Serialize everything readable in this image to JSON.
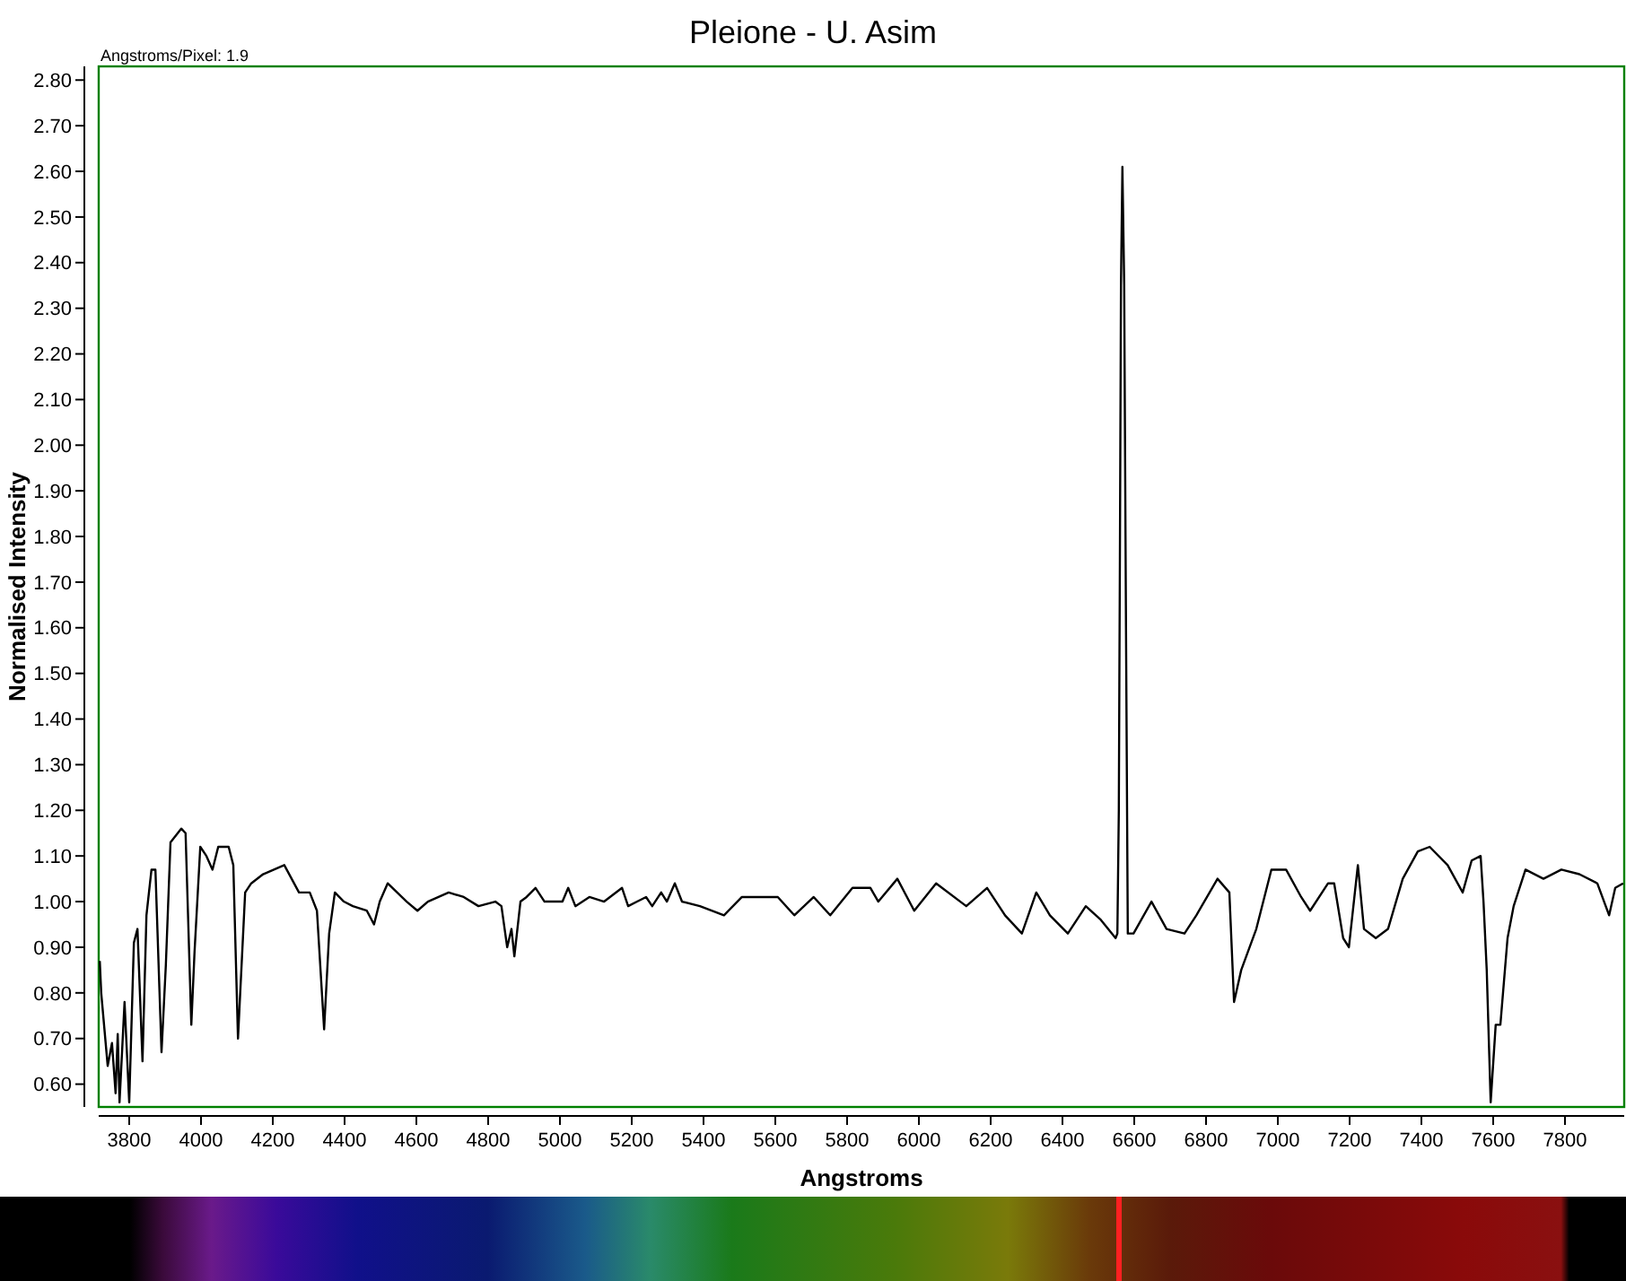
{
  "chart_data": {
    "type": "line",
    "title": "Pleione - U. Asim",
    "xlabel": "Angstroms",
    "ylabel": "Normalised Intensity",
    "annotations": [
      "Angstroms/Pixel: 1.9"
    ],
    "xlim": [
      3715,
      7965
    ],
    "ylim": [
      0.55,
      2.83
    ],
    "xticks": [
      3800,
      4000,
      4200,
      4400,
      4600,
      4800,
      5000,
      5200,
      5400,
      5600,
      5800,
      6000,
      6200,
      6400,
      6600,
      6800,
      7000,
      7200,
      7400,
      7600,
      7800
    ],
    "yticks": [
      {
        "value": 0.6,
        "label": "0.60"
      },
      {
        "value": 0.7,
        "label": "0.70"
      },
      {
        "value": 0.8,
        "label": "0.80"
      },
      {
        "value": 0.9,
        "label": "0.90"
      },
      {
        "value": 1.0,
        "label": "1.00"
      },
      {
        "value": 1.1,
        "label": "1.10"
      },
      {
        "value": 1.2,
        "label": "1.20"
      },
      {
        "value": 1.3,
        "label": "1.30"
      },
      {
        "value": 1.4,
        "label": "1.40"
      },
      {
        "value": 1.5,
        "label": "1.50"
      },
      {
        "value": 1.6,
        "label": "1.60"
      },
      {
        "value": 1.7,
        "label": "1.70"
      },
      {
        "value": 1.8,
        "label": "1.80"
      },
      {
        "value": 1.9,
        "label": "1.90"
      },
      {
        "value": 2.0,
        "label": "2.00"
      },
      {
        "value": 2.1,
        "label": "2.10"
      },
      {
        "value": 2.2,
        "label": "2.20"
      },
      {
        "value": 2.3,
        "label": "2.30"
      },
      {
        "value": 2.4,
        "label": "2.40"
      },
      {
        "value": 2.5,
        "label": "2.50"
      },
      {
        "value": 2.6,
        "label": "2.60"
      },
      {
        "value": 2.7,
        "label": "2.70"
      },
      {
        "value": 2.8,
        "label": "2.80"
      }
    ],
    "grid": false,
    "marker": "none",
    "line_style": "solid",
    "series": [
      {
        "color": "#000000",
        "x": [
          3718,
          3722,
          3740,
          3752,
          3762,
          3768,
          3773,
          3787,
          3800,
          3813,
          3823,
          3837,
          3848,
          3862,
          3873,
          3890,
          3902,
          3915,
          3945,
          3957,
          3973,
          3982,
          3998,
          4015,
          4032,
          4048,
          4077,
          4090,
          4103,
          4123,
          4140,
          4173,
          4232,
          4273,
          4303,
          4323,
          4343,
          4357,
          4373,
          4398,
          4423,
          4462,
          4482,
          4498,
          4520,
          4573,
          4603,
          4632,
          4690,
          4732,
          4773,
          4820,
          4837,
          4853,
          4865,
          4873,
          4890,
          4907,
          4932,
          4957,
          5007,
          5023,
          5043,
          5082,
          5123,
          5173,
          5190,
          5215,
          5240,
          5257,
          5282,
          5298,
          5320,
          5340,
          5390,
          5457,
          5507,
          5573,
          5607,
          5653,
          5707,
          5753,
          5815,
          5865,
          5887,
          5940,
          5987,
          6048,
          6132,
          6190,
          6240,
          6287,
          6327,
          6365,
          6415,
          6465,
          6507,
          6548,
          6553,
          6557,
          6560,
          6563,
          6567,
          6572,
          6577,
          6582,
          6598,
          6648,
          6690,
          6740,
          6773,
          6832,
          6865,
          6878,
          6898,
          6940,
          6982,
          7023,
          7065,
          7090,
          7140,
          7157,
          7182,
          7198,
          7223,
          7240,
          7273,
          7307,
          7348,
          7390,
          7423,
          7473,
          7515,
          7540,
          7565,
          7573,
          7582,
          7593,
          7607,
          7620,
          7640,
          7657,
          7690,
          7740,
          7790,
          7840,
          7890,
          7923,
          7940,
          7962
        ],
        "values": [
          0.87,
          0.8,
          0.64,
          0.69,
          0.58,
          0.71,
          0.56,
          0.78,
          0.56,
          0.91,
          0.94,
          0.65,
          0.97,
          1.07,
          1.07,
          0.67,
          0.86,
          1.13,
          1.16,
          1.15,
          0.73,
          0.89,
          1.12,
          1.1,
          1.07,
          1.12,
          1.12,
          1.08,
          0.7,
          1.02,
          1.04,
          1.06,
          1.08,
          1.02,
          1.02,
          0.98,
          0.72,
          0.93,
          1.02,
          1.0,
          0.99,
          0.98,
          0.95,
          1.0,
          1.04,
          1.0,
          0.98,
          1.0,
          1.02,
          1.01,
          0.99,
          1.0,
          0.99,
          0.9,
          0.94,
          0.88,
          1.0,
          1.01,
          1.03,
          1.0,
          1.0,
          1.03,
          0.99,
          1.01,
          1.0,
          1.03,
          0.99,
          1.0,
          1.01,
          0.99,
          1.02,
          1.0,
          1.04,
          1.0,
          0.99,
          0.97,
          1.01,
          1.01,
          1.01,
          0.97,
          1.01,
          0.97,
          1.03,
          1.03,
          1.0,
          1.05,
          0.98,
          1.04,
          0.99,
          1.03,
          0.97,
          0.93,
          1.02,
          0.97,
          0.93,
          0.99,
          0.96,
          0.92,
          0.93,
          1.2,
          1.75,
          2.35,
          2.61,
          2.35,
          1.6,
          0.93,
          0.93,
          1.0,
          0.94,
          0.93,
          0.97,
          1.05,
          1.02,
          0.78,
          0.85,
          0.94,
          1.07,
          1.07,
          1.01,
          0.98,
          1.04,
          1.04,
          0.92,
          0.9,
          1.08,
          0.94,
          0.92,
          0.94,
          1.05,
          1.11,
          1.12,
          1.08,
          1.02,
          1.09,
          1.1,
          1.0,
          0.85,
          0.56,
          0.73,
          0.73,
          0.92,
          0.99,
          1.07,
          1.05,
          1.07,
          1.06,
          1.04,
          0.97,
          1.03,
          1.04
        ]
      }
    ]
  }
}
